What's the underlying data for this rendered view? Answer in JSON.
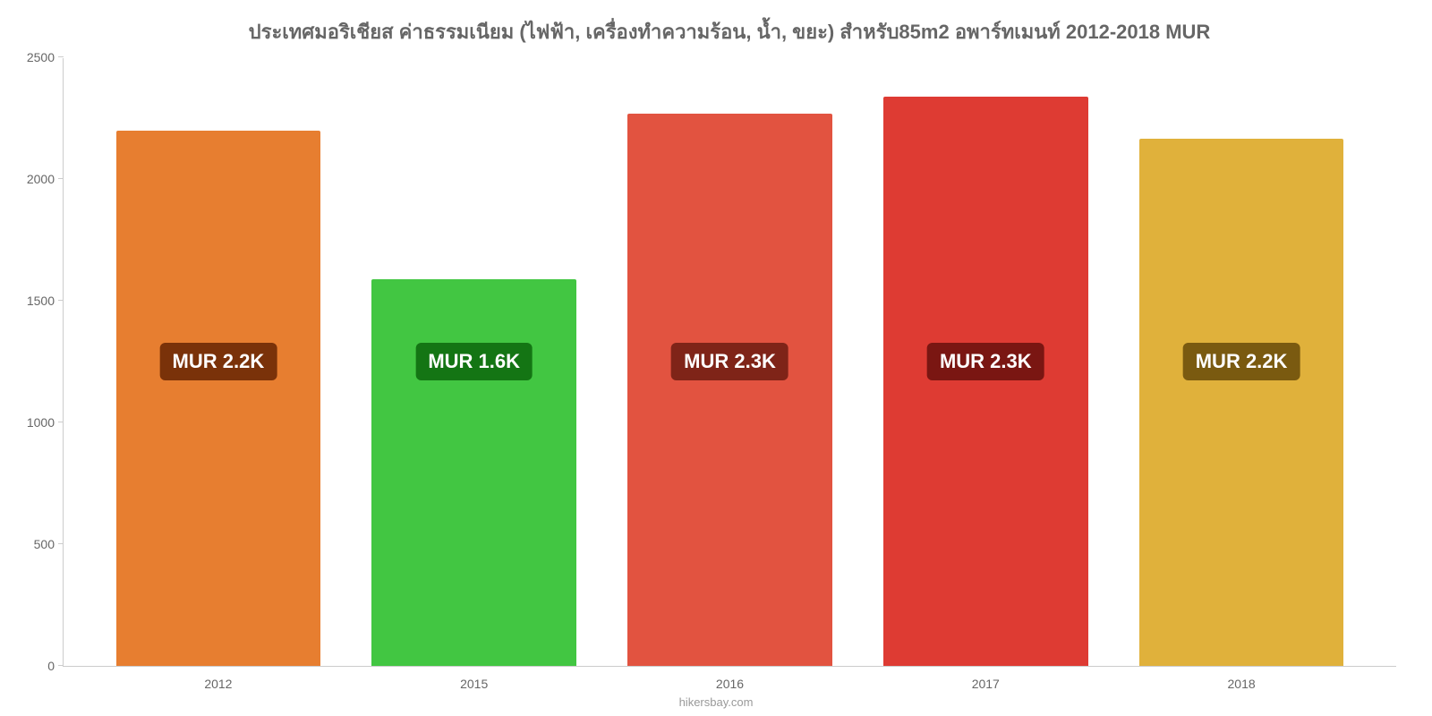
{
  "chart": {
    "type": "bar",
    "title": "ประเทศมอริเชียส ค่าธรรมเนียม (ไฟฟ้า, เครื่องทำความร้อน, น้ำ, ขยะ) สำหรับ85m2 อพาร์ทเมนท์ 2012-2018 MUR",
    "title_color": "#666666",
    "title_fontsize": 22,
    "background_color": "#ffffff",
    "axis_color": "#cccccc",
    "label_color": "#666666",
    "label_fontsize": 14,
    "ylim": [
      0,
      2500
    ],
    "ytick_step": 500,
    "yticks": [
      {
        "value": 0,
        "label": "0"
      },
      {
        "value": 500,
        "label": "500"
      },
      {
        "value": 1000,
        "label": "1000"
      },
      {
        "value": 1500,
        "label": "1500"
      },
      {
        "value": 2000,
        "label": "2000"
      },
      {
        "value": 2500,
        "label": "2500"
      }
    ],
    "categories": [
      "2012",
      "2015",
      "2016",
      "2017",
      "2018"
    ],
    "values": [
      2200,
      1590,
      2270,
      2340,
      2170
    ],
    "value_labels": [
      "MUR 2.2K",
      "MUR 1.6K",
      "MUR 2.3K",
      "MUR 2.3K",
      "MUR 2.2K"
    ],
    "bar_colors": [
      "#e77e30",
      "#42c642",
      "#e25340",
      "#de3b33",
      "#e0b13b"
    ],
    "badge_colors": [
      "#7a3209",
      "#147514",
      "#7f2418",
      "#7a1612",
      "#7a5a10"
    ],
    "badge_text_color": "#ffffff",
    "badge_fontsize": 22,
    "badge_y_value": 1250,
    "bar_width": 0.8,
    "source": "hikersbay.com",
    "source_color": "#999999"
  }
}
